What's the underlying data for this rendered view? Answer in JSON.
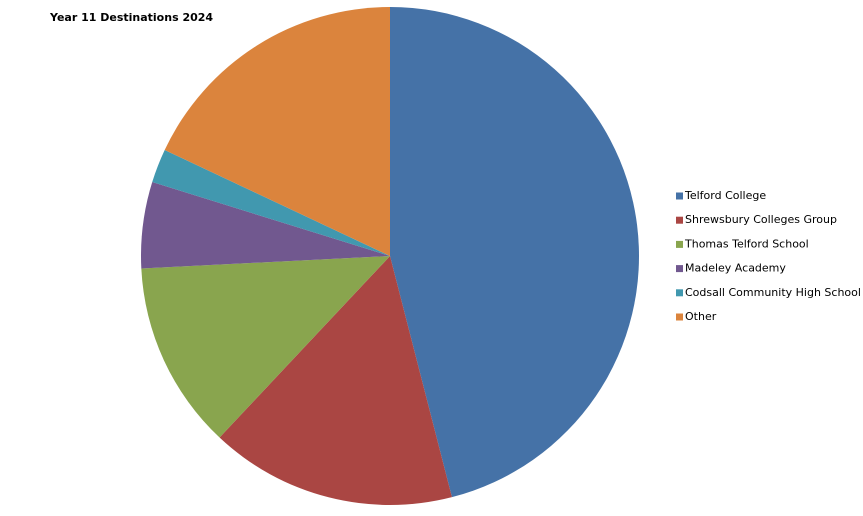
{
  "chart_data": {
    "type": "pie",
    "title": "Year 11 Destinations 2024",
    "categories": [
      "Telford College",
      "Shrewsbury Colleges Group",
      "Thomas Telford School",
      "Madeley Academy",
      "Codsall Community High School",
      "Other"
    ],
    "values": [
      46,
      16,
      12.2,
      5.6,
      2.2,
      18
    ],
    "colors": [
      "#4572a7",
      "#aa4643",
      "#89a54e",
      "#71588f",
      "#4198af",
      "#db843d"
    ],
    "legend": "right"
  }
}
